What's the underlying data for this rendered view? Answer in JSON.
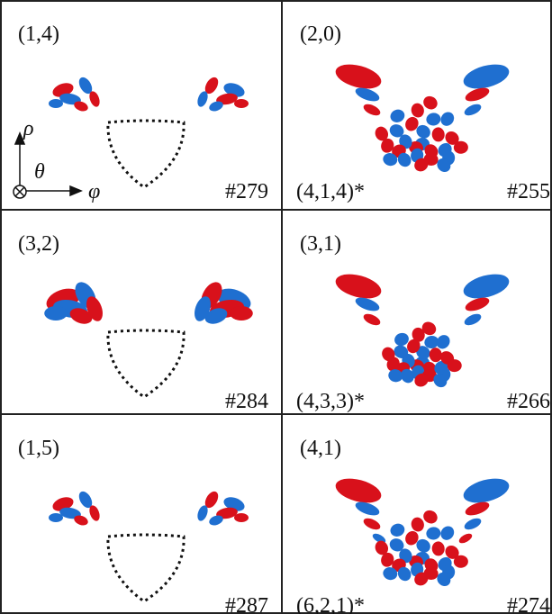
{
  "panels": [
    {
      "label": "(1,4)",
      "number": "#279"
    },
    {
      "label": "(2,0)",
      "sublabel": "(4,1,4)*",
      "number": "#255"
    },
    {
      "label": "(3,2)",
      "number": "#284"
    },
    {
      "label": "(3,1)",
      "sublabel": "(4,3,3)*",
      "number": "#266"
    },
    {
      "label": "(1,5)",
      "number": "#287"
    },
    {
      "label": "(4,1)",
      "sublabel": "(6,2,1)*",
      "number": "#274"
    }
  ],
  "axes": {
    "rho": "ρ",
    "theta": "θ",
    "phi": "φ"
  }
}
